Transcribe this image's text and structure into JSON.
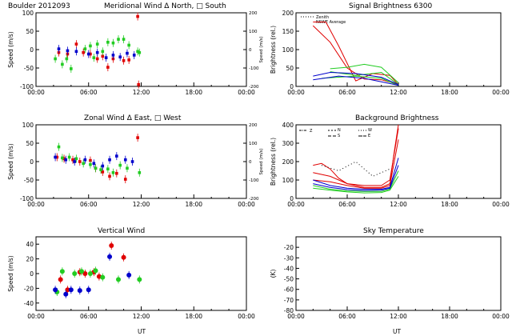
{
  "figure": {
    "colors": {
      "red": "#e00000",
      "green": "#22cc22",
      "blue": "#0000cc",
      "axis": "#000000"
    },
    "xticks": [
      "00:00",
      "06:00",
      "12:00",
      "18:00",
      "00:00"
    ],
    "xlabel": "UT"
  },
  "chart_data": [
    {
      "id": "meridional",
      "type": "scatter",
      "title_left": "Boulder   2012093",
      "title": "Meridional Wind    Δ North, □ South",
      "ylabel": "Speed (m/s)",
      "ylabel_right": "Speed (m/s)",
      "ylim": [
        -100,
        100
      ],
      "yticks": [
        "100",
        "50",
        "0",
        "-50",
        "-100"
      ],
      "yticks_right": [
        "200",
        "100",
        "0",
        "-100",
        "-200"
      ],
      "xlim": [
        0,
        24
      ],
      "series": [
        {
          "color": "red",
          "points": [
            [
              2.6,
              -8
            ],
            [
              3.6,
              -12
            ],
            [
              4.6,
              15
            ],
            [
              5.4,
              -8
            ],
            [
              6.2,
              -12
            ],
            [
              7.0,
              -25
            ],
            [
              7.6,
              -18
            ],
            [
              8.2,
              -48
            ],
            [
              8.8,
              -25
            ],
            [
              10.0,
              -30
            ],
            [
              10.6,
              -28
            ],
            [
              11.6,
              90
            ],
            [
              11.7,
              -95
            ]
          ]
        },
        {
          "color": "green",
          "points": [
            [
              2.2,
              -25
            ],
            [
              3.0,
              -40
            ],
            [
              3.5,
              -25
            ],
            [
              4.0,
              -52
            ],
            [
              5.6,
              2
            ],
            [
              6.2,
              10
            ],
            [
              6.6,
              -22
            ],
            [
              7.0,
              15
            ],
            [
              7.6,
              -5
            ],
            [
              8.2,
              20
            ],
            [
              8.8,
              18
            ],
            [
              9.4,
              28
            ],
            [
              10.0,
              28
            ],
            [
              10.6,
              12
            ],
            [
              11.6,
              -5
            ],
            [
              11.8,
              -8
            ]
          ]
        },
        {
          "color": "blue",
          "points": [
            [
              2.6,
              2
            ],
            [
              3.6,
              -3
            ],
            [
              4.6,
              -5
            ],
            [
              6.0,
              -12
            ],
            [
              7.0,
              -8
            ],
            [
              8.0,
              -22
            ],
            [
              8.8,
              -15
            ],
            [
              9.6,
              -20
            ],
            [
              10.4,
              -10
            ],
            [
              11.2,
              -15
            ]
          ]
        }
      ]
    },
    {
      "id": "signal",
      "type": "line",
      "title": "Signal Brightness       6300",
      "ylabel": "Brightness (rel.)",
      "ylim": [
        0,
        200
      ],
      "yticks": [
        "200",
        "150",
        "100",
        "50",
        "0"
      ],
      "xlim": [
        0,
        24
      ],
      "legend": [
        "Zenith",
        "NSWE Average"
      ],
      "series": [
        {
          "color": "red",
          "points": [
            [
              2,
              175
            ],
            [
              3.5,
              175
            ],
            [
              5,
              110
            ],
            [
              7,
              15
            ],
            [
              9,
              35
            ],
            [
              11,
              30
            ],
            [
              12,
              5
            ]
          ]
        },
        {
          "color": "red",
          "points": [
            [
              2,
              165
            ],
            [
              4,
              120
            ],
            [
              6,
              50
            ],
            [
              8,
              20
            ],
            [
              10,
              18
            ],
            [
              12,
              5
            ]
          ]
        },
        {
          "color": "green",
          "points": [
            [
              4,
              48
            ],
            [
              6,
              52
            ],
            [
              8,
              60
            ],
            [
              10,
              52
            ],
            [
              12,
              10
            ]
          ]
        },
        {
          "color": "green",
          "points": [
            [
              4,
              40
            ],
            [
              7,
              30
            ],
            [
              10,
              38
            ],
            [
              12,
              5
            ]
          ]
        },
        {
          "color": "green",
          "points": [
            [
              3,
              22
            ],
            [
              7,
              28
            ],
            [
              10,
              22
            ],
            [
              12,
              2
            ]
          ]
        },
        {
          "color": "blue",
          "points": [
            [
              2,
              28
            ],
            [
              4,
              38
            ],
            [
              7,
              35
            ],
            [
              10,
              25
            ],
            [
              12,
              5
            ]
          ]
        },
        {
          "color": "blue",
          "points": [
            [
              2,
              18
            ],
            [
              5,
              28
            ],
            [
              8,
              22
            ],
            [
              12,
              3
            ]
          ]
        }
      ]
    },
    {
      "id": "zonal",
      "type": "scatter",
      "title": "Zonal Wind       Δ East, □ West",
      "ylabel": "Speed (m/s)",
      "ylabel_right": "Speed (m/s)",
      "ylim": [
        -100,
        100
      ],
      "yticks": [
        "100",
        "50",
        "0",
        "-50",
        "-100"
      ],
      "yticks_right": [
        "200",
        "100",
        "0",
        "-100",
        "-200"
      ],
      "xlim": [
        0,
        24
      ],
      "series": [
        {
          "color": "red",
          "points": [
            [
              2.4,
              12
            ],
            [
              3.2,
              8
            ],
            [
              4.2,
              5
            ],
            [
              5.0,
              0
            ],
            [
              6.2,
              3
            ],
            [
              6.8,
              -18
            ],
            [
              7.6,
              -28
            ],
            [
              8.4,
              -40
            ],
            [
              9.2,
              -32
            ],
            [
              10.2,
              -48
            ],
            [
              11.6,
              65
            ]
          ]
        },
        {
          "color": "green",
          "points": [
            [
              2.6,
              40
            ],
            [
              3.0,
              10
            ],
            [
              3.8,
              12
            ],
            [
              4.6,
              8
            ],
            [
              5.4,
              -5
            ],
            [
              6.2,
              -8
            ],
            [
              6.8,
              -18
            ],
            [
              7.4,
              -22
            ],
            [
              8.2,
              -20
            ],
            [
              8.8,
              -30
            ],
            [
              9.6,
              -10
            ],
            [
              10.4,
              -18
            ],
            [
              11.8,
              -30
            ]
          ]
        },
        {
          "color": "blue",
          "points": [
            [
              2.2,
              12
            ],
            [
              3.4,
              5
            ],
            [
              4.4,
              0
            ],
            [
              5.6,
              5
            ],
            [
              6.6,
              -5
            ],
            [
              7.6,
              -12
            ],
            [
              8.4,
              5
            ],
            [
              9.2,
              15
            ],
            [
              10.2,
              5
            ],
            [
              11.0,
              0
            ]
          ]
        }
      ]
    },
    {
      "id": "background",
      "type": "line",
      "title": "Background Brightness",
      "ylabel": "Brightness (rel.)",
      "ylim": [
        0,
        400
      ],
      "yticks": [
        "400",
        "300",
        "200",
        "100",
        "0"
      ],
      "xlim": [
        0,
        24
      ],
      "legend": [
        "Z",
        "N",
        "S",
        "W",
        "E"
      ],
      "series": [
        {
          "color": "red",
          "points": [
            [
              2,
              180
            ],
            [
              3,
              190
            ],
            [
              4,
              160
            ],
            [
              5,
              110
            ],
            [
              6,
              80
            ],
            [
              8,
              60
            ],
            [
              10,
              60
            ],
            [
              11,
              80
            ],
            [
              11.5,
              250
            ],
            [
              12,
              400
            ]
          ]
        },
        {
          "color": "red",
          "points": [
            [
              2,
              140
            ],
            [
              4,
              120
            ],
            [
              6,
              80
            ],
            [
              8,
              70
            ],
            [
              10,
              70
            ],
            [
              11,
              100
            ],
            [
              12,
              380
            ]
          ]
        },
        {
          "color": "red",
          "points": [
            [
              2,
              100
            ],
            [
              4,
              90
            ],
            [
              6,
              70
            ],
            [
              8,
              55
            ],
            [
              10,
              55
            ],
            [
              11,
              70
            ],
            [
              12,
              320
            ]
          ]
        },
        {
          "color": "green",
          "points": [
            [
              2,
              70
            ],
            [
              4,
              50
            ],
            [
              6,
              40
            ],
            [
              8,
              38
            ],
            [
              10,
              38
            ],
            [
              11,
              50
            ],
            [
              12,
              150
            ]
          ]
        },
        {
          "color": "green",
          "points": [
            [
              2,
              55
            ],
            [
              4,
              45
            ],
            [
              6,
              35
            ],
            [
              8,
              30
            ],
            [
              10,
              32
            ],
            [
              11,
              45
            ],
            [
              12,
              120
            ]
          ]
        },
        {
          "color": "blue",
          "points": [
            [
              2,
              100
            ],
            [
              4,
              70
            ],
            [
              6,
              55
            ],
            [
              8,
              50
            ],
            [
              10,
              50
            ],
            [
              11,
              60
            ],
            [
              12,
              220
            ]
          ]
        },
        {
          "color": "blue",
          "points": [
            [
              2,
              80
            ],
            [
              4,
              60
            ],
            [
              6,
              48
            ],
            [
              8,
              42
            ],
            [
              10,
              45
            ],
            [
              11,
              55
            ],
            [
              12,
              180
            ]
          ]
        },
        {
          "color": "black",
          "points": [
            [
              3,
              180
            ],
            [
              5,
              150
            ],
            [
              7,
              200
            ],
            [
              9,
              120
            ],
            [
              11,
              160
            ]
          ]
        }
      ]
    },
    {
      "id": "vertical",
      "type": "scatter",
      "title": "Vertical Wind",
      "ylabel": "Speed (m/s)",
      "ylim": [
        -50,
        50
      ],
      "yticks": [
        "40",
        "20",
        "0",
        "-20",
        "-40"
      ],
      "ytick_values": [
        40,
        20,
        0,
        -20,
        -40
      ],
      "xlim": [
        0,
        24
      ],
      "series": [
        {
          "color": "red",
          "points": [
            [
              2.8,
              -8
            ],
            [
              3.6,
              -22
            ],
            [
              5.0,
              2
            ],
            [
              5.6,
              0
            ],
            [
              6.6,
              2
            ],
            [
              7.2,
              -4
            ],
            [
              8.6,
              38
            ],
            [
              10.0,
              22
            ]
          ]
        },
        {
          "color": "green",
          "points": [
            [
              2.4,
              -25
            ],
            [
              3.0,
              3
            ],
            [
              4.4,
              0
            ],
            [
              5.2,
              3
            ],
            [
              6.2,
              0
            ],
            [
              6.8,
              4
            ],
            [
              7.6,
              -5
            ],
            [
              9.4,
              -8
            ],
            [
              11.8,
              -8
            ]
          ]
        },
        {
          "color": "blue",
          "points": [
            [
              2.2,
              -22
            ],
            [
              3.4,
              -28
            ],
            [
              4.0,
              -22
            ],
            [
              5.0,
              -23
            ],
            [
              6.0,
              -22
            ],
            [
              8.4,
              23
            ],
            [
              10.6,
              -2
            ]
          ]
        }
      ]
    },
    {
      "id": "sky",
      "type": "line",
      "title": "Sky Temperature",
      "ylabel": "(K)",
      "ylim": [
        -80,
        -10
      ],
      "yticks": [
        "-20",
        "-30",
        "-40",
        "-50",
        "-60",
        "-70",
        "-80"
      ],
      "ytick_values": [
        -20,
        -30,
        -40,
        -50,
        -60,
        -70,
        -80
      ],
      "xlim": [
        0,
        24
      ],
      "series": []
    }
  ]
}
